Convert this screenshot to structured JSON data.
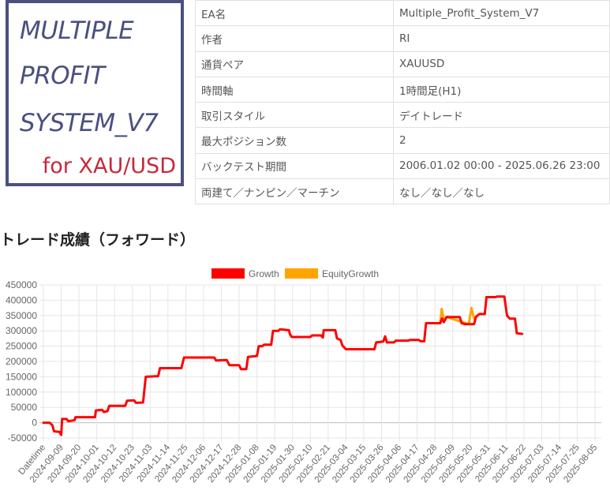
{
  "logo": {
    "lines": [
      "MULTIPLE",
      "PROFIT",
      "SYSTEM_V7"
    ],
    "subtitle": "for XAU/USD",
    "color": "#4a5080",
    "accent": "#c8283a"
  },
  "info_table": [
    {
      "label": "EA名",
      "value": "Multiple_Profit_System_V7"
    },
    {
      "label": "作者",
      "value": "RI"
    },
    {
      "label": "通貨ペア",
      "value": "XAUUSD"
    },
    {
      "label": "時間軸",
      "value": "1時間足(H1)"
    },
    {
      "label": "取引スタイル",
      "value": "デイトレード"
    },
    {
      "label": "最大ポジション数",
      "value": "2"
    },
    {
      "label": "バックテスト期間",
      "value": "2006.01.02 00:00 - 2025.06.26 23:00"
    },
    {
      "label": "両建て／ナンピン／マーチン",
      "value": "なし／なし／なし"
    }
  ],
  "section_heading": "トレード成績（フォワード）",
  "chart_data": {
    "type": "line",
    "legend": [
      {
        "name": "Growth",
        "color": "#ff0000"
      },
      {
        "name": "EquityGrowth",
        "color": "#ffa500"
      }
    ],
    "legend_position": "top-center",
    "grid": true,
    "ylim": [
      -50000,
      450000
    ],
    "yticks": [
      "450000",
      "400000",
      "350000",
      "300000",
      "250000",
      "200000",
      "150000",
      "100000",
      "50000",
      "0",
      "-50000"
    ],
    "ytick_values": [
      450000,
      400000,
      350000,
      300000,
      250000,
      200000,
      150000,
      100000,
      50000,
      0,
      -50000
    ],
    "xticks": [
      "Datetime",
      "2024-09-09",
      "2024-09-20",
      "2024-10-01",
      "2024-10-12",
      "2024-10-23",
      "2024-11-03",
      "2024-11-14",
      "2024-11-25",
      "2024-12-06",
      "2024-12-17",
      "2024-12-28",
      "2025-01-08",
      "2025-01-19",
      "2025-01-30",
      "2025-02-10",
      "2025-02-21",
      "2025-03-04",
      "2025-03-15",
      "2025-03-26",
      "2025-04-06",
      "2025-04-17",
      "2025-04-28",
      "2025-05-09",
      "2025-05-20",
      "2025-05-31",
      "2025-06-11",
      "2025-06-22",
      "2025-07-03",
      "2025-07-14",
      "2025-07-25",
      "2025-08-05"
    ],
    "series": [
      {
        "name": "Growth",
        "color": "#ff0000",
        "points": [
          [
            0,
            0
          ],
          [
            0.35,
            0
          ],
          [
            0.5,
            -8000
          ],
          [
            0.6,
            -28000
          ],
          [
            0.9,
            -30000
          ],
          [
            1.0,
            -40000
          ],
          [
            1.05,
            12000
          ],
          [
            1.3,
            12000
          ],
          [
            1.4,
            5000
          ],
          [
            1.75,
            8000
          ],
          [
            1.8,
            18000
          ],
          [
            2.9,
            18000
          ],
          [
            2.95,
            40000
          ],
          [
            3.3,
            42000
          ],
          [
            3.4,
            35000
          ],
          [
            3.6,
            38000
          ],
          [
            3.7,
            55000
          ],
          [
            4.6,
            55000
          ],
          [
            4.7,
            72000
          ],
          [
            5.1,
            73000
          ],
          [
            5.2,
            65000
          ],
          [
            5.6,
            66000
          ],
          [
            5.75,
            150000
          ],
          [
            6.45,
            152000
          ],
          [
            6.55,
            178000
          ],
          [
            7.75,
            178000
          ],
          [
            7.9,
            213000
          ],
          [
            9.6,
            213000
          ],
          [
            9.7,
            203000
          ],
          [
            10.3,
            205000
          ],
          [
            10.45,
            188000
          ],
          [
            11.0,
            188000
          ],
          [
            11.1,
            175000
          ],
          [
            11.4,
            175000
          ],
          [
            11.5,
            215000
          ],
          [
            12.0,
            218000
          ],
          [
            12.1,
            250000
          ],
          [
            12.3,
            250000
          ],
          [
            12.4,
            255000
          ],
          [
            12.8,
            255000
          ],
          [
            12.9,
            300000
          ],
          [
            13.2,
            300000
          ],
          [
            13.3,
            305000
          ],
          [
            13.8,
            302000
          ],
          [
            13.85,
            290000
          ],
          [
            13.95,
            280000
          ],
          [
            15.0,
            280000
          ],
          [
            15.1,
            285000
          ],
          [
            15.6,
            285000
          ],
          [
            15.7,
            278000
          ],
          [
            15.75,
            302000
          ],
          [
            16.4,
            302000
          ],
          [
            16.5,
            275000
          ],
          [
            16.7,
            270000
          ],
          [
            16.8,
            252000
          ],
          [
            17.0,
            240000
          ],
          [
            18.6,
            240000
          ],
          [
            18.7,
            262000
          ],
          [
            19.1,
            265000
          ],
          [
            19.2,
            282000
          ],
          [
            19.3,
            262000
          ],
          [
            19.7,
            262000
          ],
          [
            19.8,
            268000
          ],
          [
            20.5,
            268000
          ],
          [
            20.6,
            270000
          ],
          [
            21.1,
            270000
          ],
          [
            21.2,
            266000
          ],
          [
            21.4,
            266000
          ],
          [
            21.5,
            325000
          ],
          [
            22.3,
            325000
          ],
          [
            22.4,
            340000
          ],
          [
            22.5,
            328000
          ],
          [
            22.65,
            345000
          ],
          [
            23.4,
            345000
          ],
          [
            23.5,
            325000
          ],
          [
            23.7,
            322000
          ],
          [
            24.2,
            322000
          ],
          [
            24.3,
            345000
          ],
          [
            24.5,
            355000
          ],
          [
            24.8,
            355000
          ],
          [
            24.9,
            410000
          ],
          [
            25.4,
            410000
          ],
          [
            25.5,
            412000
          ],
          [
            25.9,
            412000
          ],
          [
            26.05,
            350000
          ],
          [
            26.2,
            340000
          ],
          [
            26.5,
            340000
          ],
          [
            26.6,
            292000
          ],
          [
            26.9,
            290000
          ]
        ]
      },
      {
        "name": "EquityGrowth",
        "color": "#ffa500",
        "points": [
          [
            22.3,
            325000
          ],
          [
            22.38,
            372000
          ],
          [
            22.5,
            335000
          ],
          [
            22.65,
            345000
          ],
          [
            23.9,
            322000
          ],
          [
            24.05,
            375000
          ],
          [
            24.2,
            340000
          ]
        ]
      }
    ]
  }
}
